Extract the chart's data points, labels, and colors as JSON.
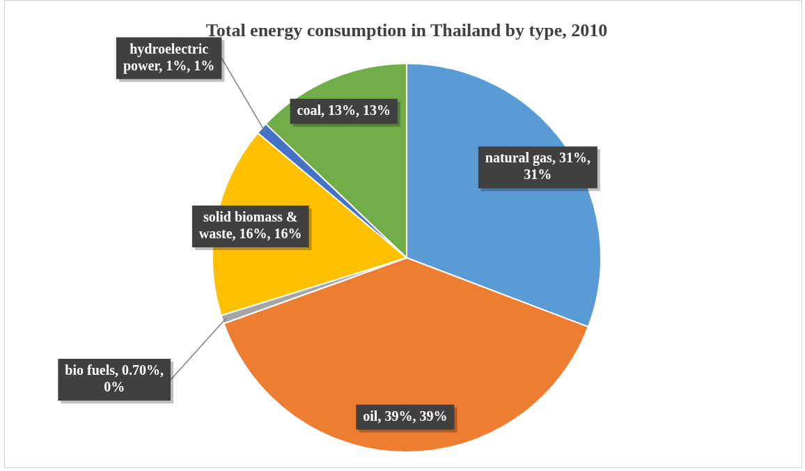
{
  "chart_data": {
    "type": "pie",
    "title": "Total energy consumption in Thailand by type, 2010",
    "categories": [
      "natural gas",
      "oil",
      "bio fuels",
      "solid biomass & waste",
      "hydroelectric power",
      "coal"
    ],
    "values": [
      31,
      39,
      0.7,
      16,
      1,
      13
    ],
    "value_labels": [
      ", 31%, 31%",
      ", 39%, 39%",
      ", 0.70%, 0%",
      ", 16%, 16%",
      ", 1%, 1%",
      ", 13%, 13%"
    ],
    "colors": [
      "#5b9bd5",
      "#ed7d31",
      "#a5a5a5",
      "#ffc000",
      "#4472c4",
      "#70ad47"
    ],
    "legend": false
  }
}
